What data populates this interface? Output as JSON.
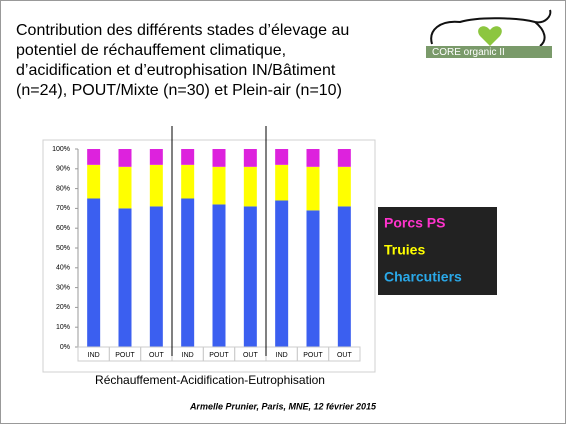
{
  "slide": {
    "title_lines": [
      "Contribution des différents stades d’élevage au",
      "potentiel de réchauffement climatique,",
      "d’acidification et d’eutrophisation IN/Bâtiment",
      "(n=24), POUT/Mixte (n=30) et Plein-air (n=10)"
    ],
    "logo": "CORE organic II",
    "footer": "Armelle Prunier, Paris, MNE, 12 février 2015"
  },
  "chart_data": {
    "type": "stacked_bar",
    "x_label": "Réchauffement-Acidification-Eutrophisation",
    "categories": [
      "IND",
      "POUT",
      "OUT",
      "IND",
      "POUT",
      "OUT",
      "IND",
      "POUT",
      "OUT"
    ],
    "series": [
      {
        "name": "Charcutiers",
        "color": "#3b5ff0",
        "legend_color": "#2aa8e8",
        "values": [
          75,
          70,
          71,
          75,
          72,
          71,
          74,
          69,
          71
        ]
      },
      {
        "name": "Truies",
        "color": "#ffff00",
        "legend_color": "#ffff00",
        "values": [
          17,
          21,
          21,
          17,
          19,
          20,
          18,
          22,
          20
        ]
      },
      {
        "name": "Porcs PS",
        "color": "#dd22dd",
        "legend_color": "#ff33cc",
        "values": [
          8,
          9,
          8,
          8,
          9,
          9,
          8,
          9,
          9
        ]
      }
    ],
    "ylim": [
      0,
      100
    ],
    "yticks": [
      {
        "value": 0,
        "label": "0%"
      },
      {
        "value": 10,
        "label": "10%"
      },
      {
        "value": 20,
        "label": "20%"
      },
      {
        "value": 30,
        "label": "30%"
      },
      {
        "value": 40,
        "label": "40%"
      },
      {
        "value": 50,
        "label": "50%"
      },
      {
        "value": 60,
        "label": "60%"
      },
      {
        "value": 70,
        "label": "70%"
      },
      {
        "value": 80,
        "label": "80%"
      },
      {
        "value": 90,
        "label": "90%"
      },
      {
        "value": 100,
        "label": "100%"
      }
    ],
    "group_size": 3
  }
}
